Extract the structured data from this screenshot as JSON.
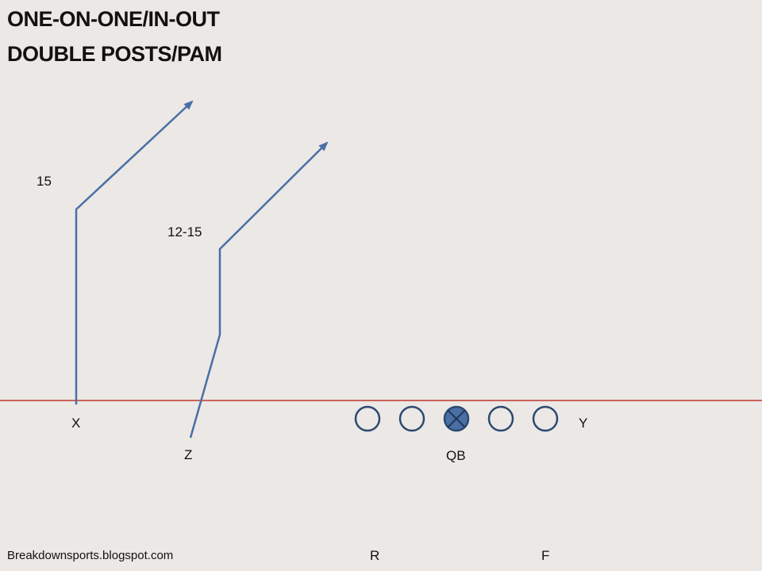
{
  "title": {
    "line1": "ONE-ON-ONE/IN-OUT",
    "line2": "DOUBLE POSTS/PAM"
  },
  "route_labels": {
    "x_depth": "15",
    "z_depth": "12-15"
  },
  "players": {
    "x": "X",
    "z": "Z",
    "y": "Y",
    "qb": "QB",
    "r": "R",
    "f": "F"
  },
  "footer": {
    "credit": "Breakdownsports.blogspot.com"
  },
  "colors": {
    "background": "#ebe8e6",
    "scrimmage_line": "#c0392b",
    "route": "#4a6fa5",
    "lineman": "#2c4a70",
    "center_fill": "#4a6fa5"
  }
}
